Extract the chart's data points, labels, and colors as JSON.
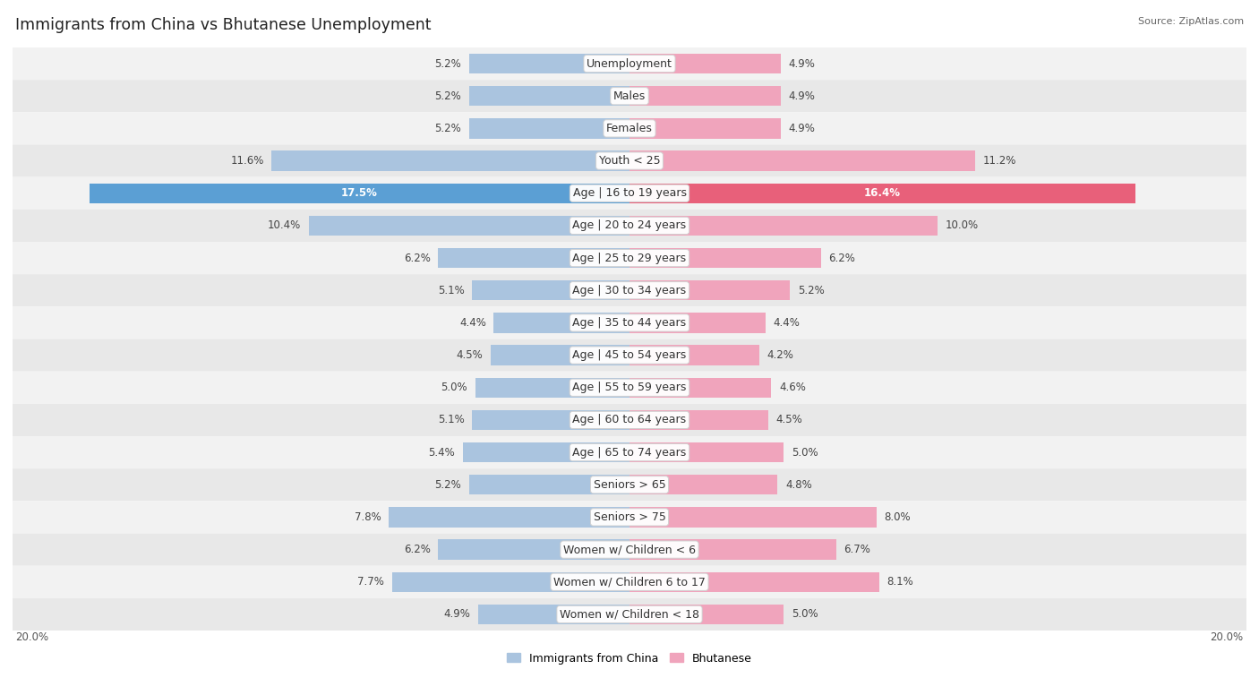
{
  "title": "Immigrants from China vs Bhutanese Unemployment",
  "source": "Source: ZipAtlas.com",
  "categories": [
    "Unemployment",
    "Males",
    "Females",
    "Youth < 25",
    "Age | 16 to 19 years",
    "Age | 20 to 24 years",
    "Age | 25 to 29 years",
    "Age | 30 to 34 years",
    "Age | 35 to 44 years",
    "Age | 45 to 54 years",
    "Age | 55 to 59 years",
    "Age | 60 to 64 years",
    "Age | 65 to 74 years",
    "Seniors > 65",
    "Seniors > 75",
    "Women w/ Children < 6",
    "Women w/ Children 6 to 17",
    "Women w/ Children < 18"
  ],
  "china_values": [
    5.2,
    5.2,
    5.2,
    11.6,
    17.5,
    10.4,
    6.2,
    5.1,
    4.4,
    4.5,
    5.0,
    5.1,
    5.4,
    5.2,
    7.8,
    6.2,
    7.7,
    4.9
  ],
  "bhutan_values": [
    4.9,
    4.9,
    4.9,
    11.2,
    16.4,
    10.0,
    6.2,
    5.2,
    4.4,
    4.2,
    4.6,
    4.5,
    5.0,
    4.8,
    8.0,
    6.7,
    8.1,
    5.0
  ],
  "china_color": "#aac4df",
  "bhutan_color": "#f0a4bc",
  "china_color_highlight": "#5b9fd4",
  "bhutan_color_highlight": "#e8607a",
  "max_val": 20.0,
  "legend_china": "Immigrants from China",
  "legend_bhutan": "Bhutanese",
  "bar_height": 0.62,
  "row_bg_light": "#f2f2f2",
  "row_bg_dark": "#e8e8e8",
  "label_fontsize": 9.0,
  "value_fontsize": 8.5,
  "title_fontsize": 12.5
}
